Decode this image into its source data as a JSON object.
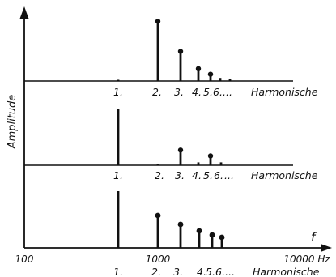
{
  "chart_data": {
    "type": "stem",
    "ylabel": "Amplitude",
    "x_axis": {
      "symbol": "f",
      "scale": "log",
      "tick_labels": [
        "100",
        "1000",
        "10000 Hz"
      ]
    },
    "panels": [
      {
        "harmonic_labels": [
          "1.",
          "2.",
          "3.",
          "4.",
          "5.",
          "6.",
          "..."
        ],
        "harmonic_suffix": "Harmonische",
        "values": [
          0.02,
          0.97,
          0.48,
          0.2,
          0.11,
          0.05,
          0.03
        ]
      },
      {
        "harmonic_labels": [
          "1.",
          "2.",
          "3.",
          "4.",
          "5.",
          "6.",
          "..."
        ],
        "harmonic_suffix": "Harmonische",
        "values": [
          0.97,
          0.02,
          0.26,
          0.05,
          0.16,
          0.05
        ]
      },
      {
        "harmonic_labels": [
          "1.",
          "2.",
          "3.",
          "4.",
          "5.",
          "6.",
          "..."
        ],
        "harmonic_suffix": "Harmonische",
        "values": [
          0.7,
          0.4,
          0.29,
          0.21,
          0.16,
          0.13
        ]
      }
    ]
  }
}
